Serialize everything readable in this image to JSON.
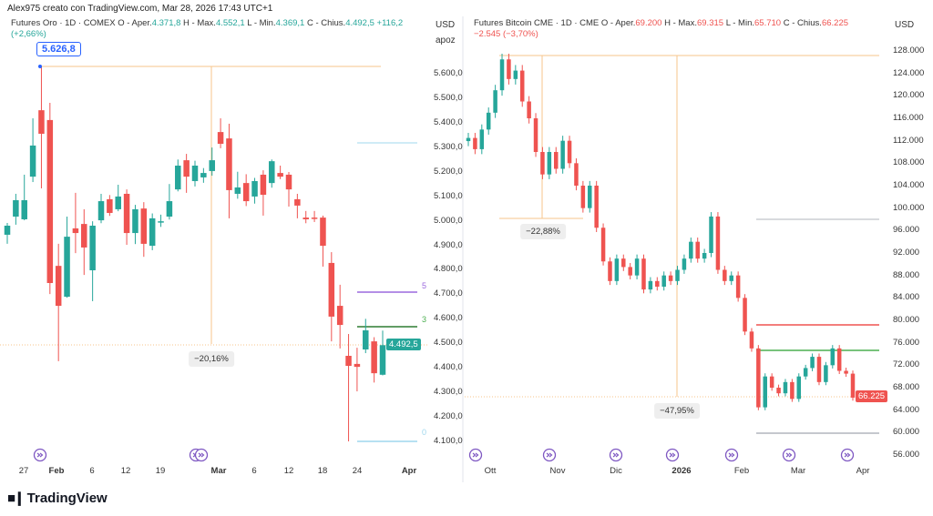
{
  "credit": "Alex975 creato con TradingView.com, Mar 28, 2026 17:43 UTC+1",
  "brand": "TradingView",
  "colors": {
    "up": "#26a69a",
    "down": "#ef5350",
    "accent": "#2962ff",
    "drawing": "#f7c58b",
    "event": "#7e57c2"
  },
  "chart_data": [
    {
      "type": "candlestick",
      "title": "Futures Oro · 1D · COMEX",
      "legend": {
        "o_label": "O - Aper.",
        "o": "4.371,8",
        "h_label": "H - Max.",
        "h": "4.552,1",
        "l_label": "L - Min.",
        "l": "4.369,1",
        "c_label": "C - Chius.",
        "c": "4.492,5",
        "change": "+116,2 (+2,66%)"
      },
      "currency": "USD",
      "scale_label": "apoz",
      "ylim": [
        4100,
        5600
      ],
      "y_ticks": [
        "5.600,0",
        "5.500,0",
        "5.400,0",
        "5.300,0",
        "5.200,0",
        "5.100,0",
        "5.000,0",
        "4.900,0",
        "4.800,0",
        "4.700,0",
        "4.600,0",
        "4.500,0",
        "4.400,0",
        "4.300,0",
        "4.200,0",
        "4.100,0"
      ],
      "x_ticks": [
        {
          "label": "27",
          "bold": false
        },
        {
          "label": "Feb",
          "bold": true
        },
        {
          "label": "6",
          "bold": false
        },
        {
          "label": "12",
          "bold": false
        },
        {
          "label": "19",
          "bold": false
        },
        {
          "label": "Mar",
          "bold": true
        },
        {
          "label": "6",
          "bold": false
        },
        {
          "label": "12",
          "bold": false
        },
        {
          "label": "18",
          "bold": false
        },
        {
          "label": "24",
          "bold": false
        },
        {
          "label": "Apr",
          "bold": true
        }
      ],
      "last_price": "4.492,5",
      "high_callout": "5.626,8",
      "measure_label": "−20,16%",
      "fib_labels": [
        "5",
        "3",
        "0"
      ],
      "ohlc": [
        [
          4943,
          4991,
          4906,
          4980
        ],
        [
          5017,
          5110,
          4984,
          5084
        ],
        [
          5006,
          5188,
          5002,
          5084
        ],
        [
          5180,
          5418,
          5158,
          5307
        ],
        [
          5451,
          5626.8,
          5132,
          5355
        ],
        [
          5411,
          5481,
          4701,
          4746
        ],
        [
          4816,
          4906,
          4427,
          4653
        ],
        [
          4690,
          5017,
          4686,
          4935
        ],
        [
          4969,
          5114,
          4868,
          4950
        ],
        [
          4987,
          5047,
          4779,
          4891
        ],
        [
          4798,
          4998,
          4672,
          4980
        ],
        [
          5002,
          5110,
          4990,
          5080
        ],
        [
          5088,
          5105,
          5020,
          5032
        ],
        [
          5047,
          5147,
          5039,
          5099
        ],
        [
          5110,
          5128,
          4902,
          4950
        ],
        [
          4950,
          5065,
          4905,
          5047
        ],
        [
          5050,
          5076,
          4853,
          4906
        ],
        [
          4898,
          5030,
          4880,
          5010
        ],
        [
          4995,
          5025,
          4975,
          4998
        ],
        [
          5017,
          5150,
          5005,
          5080
        ],
        [
          5128,
          5250,
          5120,
          5225
        ],
        [
          5247,
          5273,
          5114,
          5180
        ],
        [
          5162,
          5245,
          5140,
          5225
        ],
        [
          5177,
          5215,
          5155,
          5195
        ],
        [
          5203,
          5299,
          5184,
          5247
        ],
        [
          5362,
          5418,
          5296,
          5314
        ],
        [
          5336,
          5396,
          5010,
          5125
        ],
        [
          5110,
          5200,
          5090,
          5136
        ],
        [
          5154,
          5190,
          5060,
          5080
        ],
        [
          5099,
          5175,
          5070,
          5162
        ],
        [
          5188,
          5206,
          5021,
          5106
        ],
        [
          5154,
          5250,
          5135,
          5243
        ],
        [
          5195,
          5225,
          5170,
          5180
        ],
        [
          5188,
          5199,
          5058,
          5128
        ],
        [
          5088,
          5110,
          5010,
          5062
        ],
        [
          5013,
          5040,
          4990,
          5006
        ],
        [
          5013,
          5040,
          4995,
          5010
        ],
        [
          5013,
          5021,
          4813,
          4898
        ],
        [
          4828,
          4872,
          4508,
          4609
        ],
        [
          4653,
          4739,
          4479,
          4575
        ],
        [
          4449,
          4538,
          4100,
          4408
        ],
        [
          4416,
          4482,
          4304,
          4404
        ],
        [
          4475,
          4600,
          4460,
          4553
        ],
        [
          4508,
          4525,
          4340,
          4378
        ],
        [
          4371.8,
          4552.1,
          4369.1,
          4492.5
        ]
      ]
    },
    {
      "type": "candlestick",
      "title": "Futures Bitcoin CME · 1D · CME",
      "legend": {
        "o_label": "O - Aper.",
        "o": "69.200",
        "h_label": "H - Max.",
        "h": "69.315",
        "l_label": "L - Min.",
        "l": "65.710",
        "c_label": "C - Chius.",
        "c": "66.225",
        "change": "−2.545 (−3,70%)"
      },
      "currency": "USD",
      "ylim": [
        56000,
        128000
      ],
      "y_ticks": [
        "128.000",
        "124.000",
        "120.000",
        "116.000",
        "112.000",
        "108.000",
        "104.000",
        "100.000",
        "96.000",
        "92.000",
        "88.000",
        "84.000",
        "80.000",
        "76.000",
        "72.000",
        "68.000",
        "64.000",
        "60.000",
        "56.000"
      ],
      "x_ticks": [
        {
          "label": "Ott",
          "bold": false
        },
        {
          "label": "Nov",
          "bold": false
        },
        {
          "label": "Dic",
          "bold": false
        },
        {
          "label": "2026",
          "bold": true
        },
        {
          "label": "Feb",
          "bold": false
        },
        {
          "label": "Mar",
          "bold": false
        },
        {
          "label": "Apr",
          "bold": false
        }
      ],
      "last_price": "66.225",
      "measure_labels": [
        "−22,88%",
        "−47,95%"
      ],
      "close": [
        112500,
        110500,
        114000,
        117000,
        121000,
        126500,
        123000,
        124500,
        119000,
        116000,
        110000,
        106000,
        110000,
        107000,
        112000,
        108000,
        104000,
        100000,
        104000,
        96500,
        90500,
        87000,
        91000,
        89500,
        88000,
        91000,
        85500,
        87000,
        86000,
        88000,
        87000,
        89000,
        91000,
        94000,
        91000,
        92000,
        98500,
        89000,
        87000,
        88000,
        84000,
        78000,
        75000,
        64500,
        70000,
        68000,
        67000,
        69000,
        66000,
        70000,
        71500,
        73500,
        69000,
        72000,
        75000,
        71000,
        70500,
        66225
      ]
    }
  ]
}
